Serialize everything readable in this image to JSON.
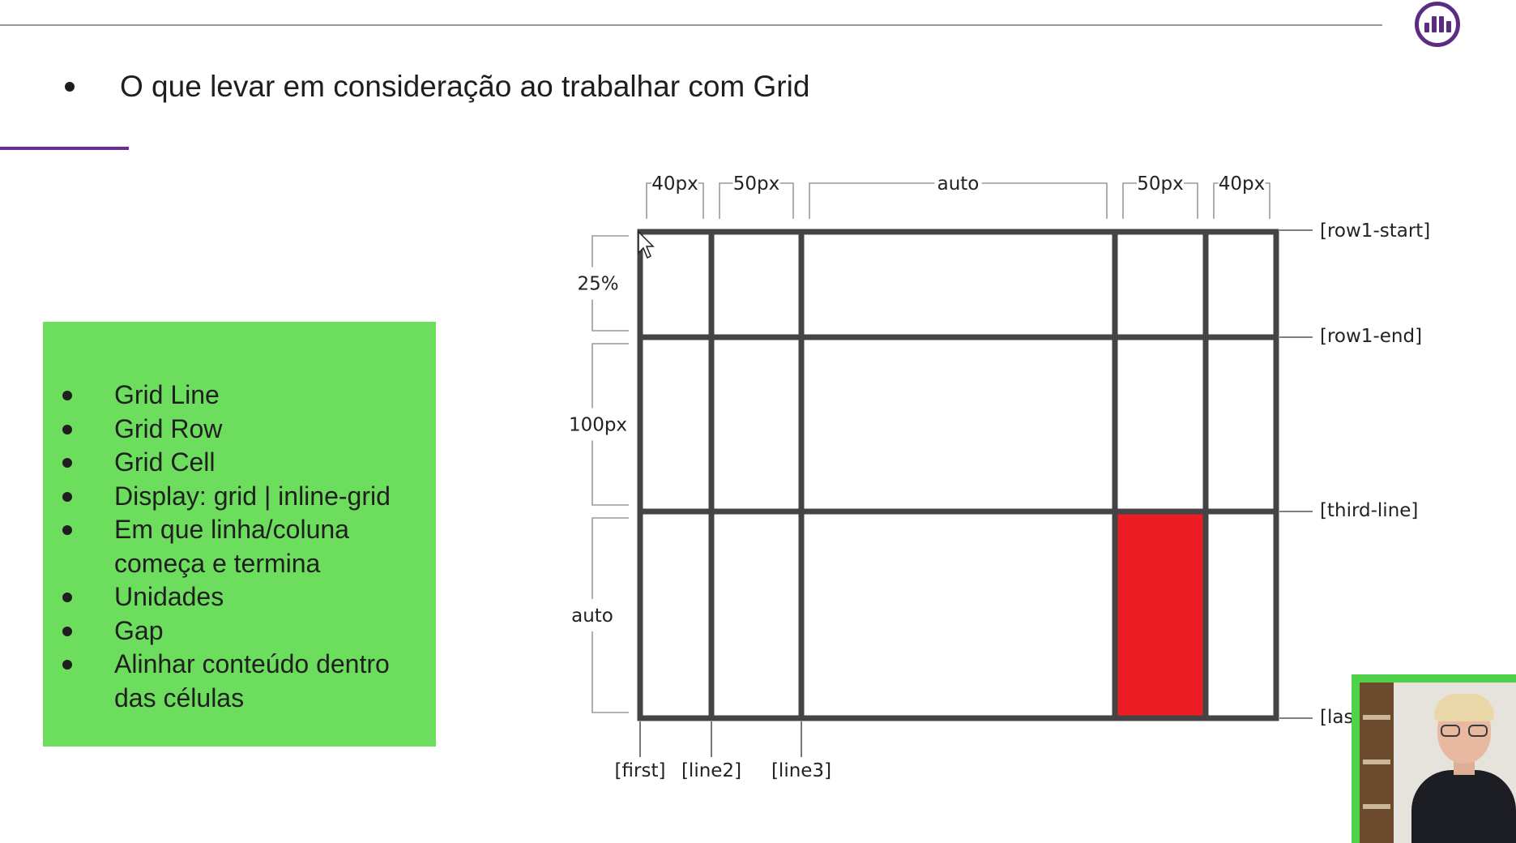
{
  "slide": {
    "title": "O que levar em consideração ao trabalhar com Grid",
    "bullets": [
      "Grid Line",
      "Grid Row",
      "Grid Cell",
      "Display: grid | inline-grid",
      "Em que linha/coluna",
      "começa e termina",
      "Unidades",
      "Gap",
      "Alinhar conteúdo dentro",
      "das células"
    ]
  },
  "diagram": {
    "column_sizes": [
      "40px",
      "50px",
      "auto",
      "50px",
      "40px"
    ],
    "row_sizes": [
      "25%",
      "100px",
      "auto"
    ],
    "row_line_names": [
      "[row1-start]",
      "[row1-end]",
      "[third-line]",
      "[last]"
    ],
    "column_line_names": [
      "[first]",
      "[line2]",
      "[line3]"
    ],
    "highlight_cell": {
      "row": 3,
      "column": 4
    },
    "colors": {
      "grid_line": "#444444",
      "highlight": "#ee1c25",
      "bracket": "#9a9a9a"
    }
  },
  "colors": {
    "accent": "#6a2a9a",
    "green_box": "#6cdd5c",
    "logo": "#5a2d82"
  }
}
